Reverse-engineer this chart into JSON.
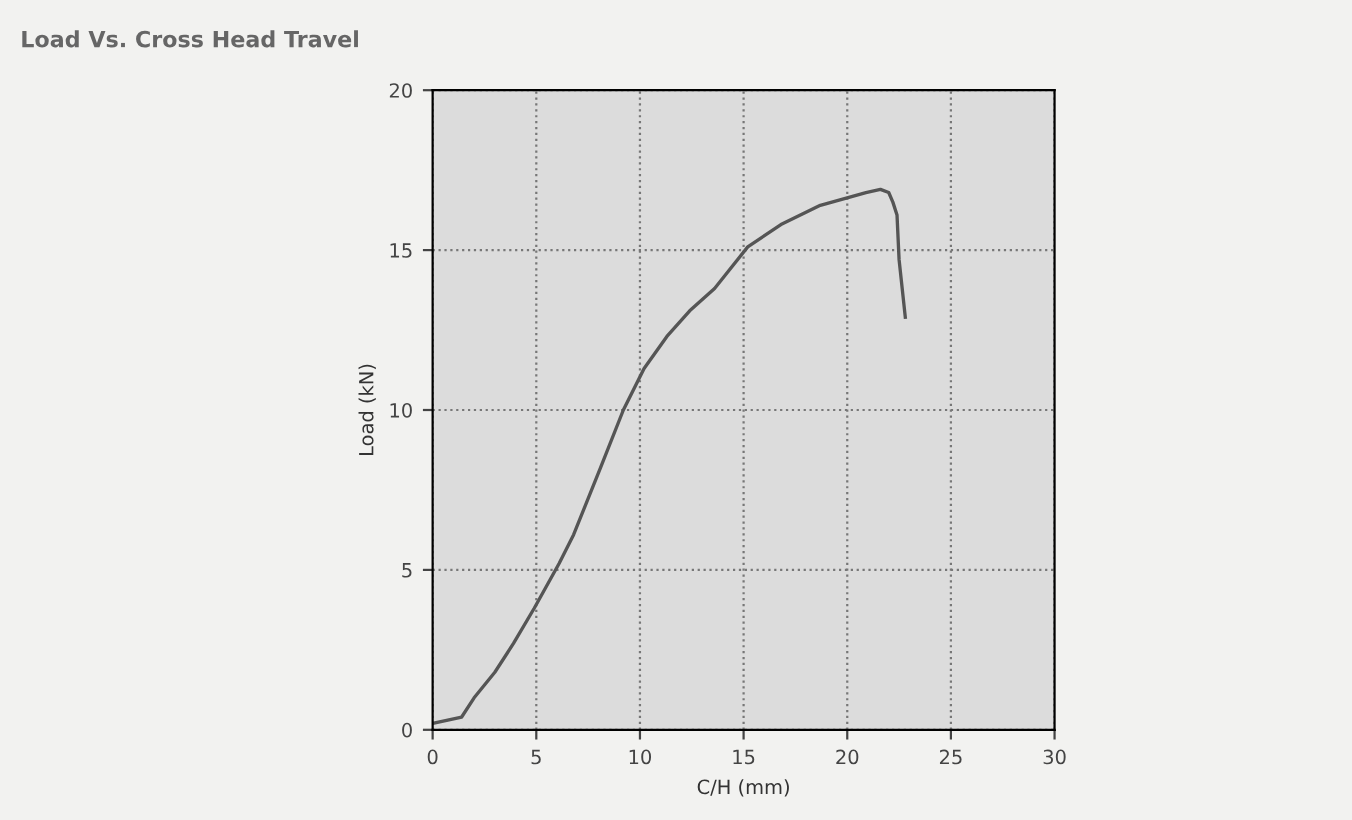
{
  "chart_data": {
    "type": "line",
    "title": "Load Vs. Cross Head Travel",
    "xlabel": "C/H (mm)",
    "ylabel": "Load (kN)",
    "series": [
      {
        "color": "#555555",
        "x": [
          0,
          1.4,
          2,
          3,
          3.9,
          4.9,
          6.1,
          6.8,
          8.1,
          9.2,
          10.2,
          11.3,
          12.4,
          13.6,
          15.2,
          16.8,
          18.7,
          20.9,
          21.6,
          22,
          22.2,
          22.4,
          22.5,
          22.8
        ],
        "values": [
          0.2,
          0.4,
          1.0,
          1.8,
          2.7,
          3.8,
          5.2,
          6.1,
          8.2,
          10,
          11.3,
          12.3,
          13.1,
          13.8,
          15.1,
          15.8,
          16.4,
          16.8,
          16.9,
          16.8,
          16.5,
          16.1,
          14.7,
          12.9
        ]
      }
    ],
    "xlim": [
      0,
      30
    ],
    "ylim": [
      0,
      20
    ],
    "xticks": [
      0,
      5,
      10,
      15,
      20,
      25,
      30
    ],
    "yticks": [
      0,
      5,
      10,
      15,
      20
    ],
    "grid": true,
    "marker": "none",
    "line_style": "solid"
  }
}
